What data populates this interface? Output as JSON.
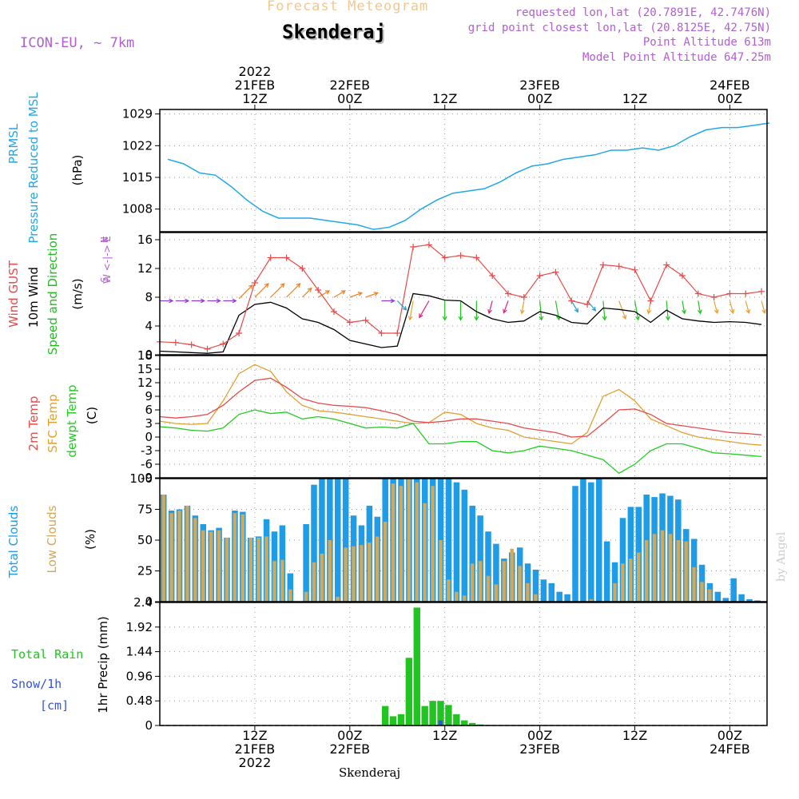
{
  "header": {
    "title_faded": "Forecast Meteogram",
    "location": "Skenderaj",
    "model": "ICON-EU, ~ 7km",
    "meta_lines": [
      "requested lon,lat (20.7891E, 42.7476N)",
      "grid point closest lon,lat (20.8125E, 42.75N)",
      "Point Altitude 613m",
      "Model Point Altitude 647.25m"
    ],
    "footer_location": "Skenderaj",
    "watermark": "by Angel"
  },
  "colors": {
    "pressure": "#22a7e8",
    "gust": "#e84a4a",
    "wind": "#000000",
    "direction": "#22bb22",
    "temp2m": "#e84a4a",
    "sfc": "#e0a030",
    "dewpt": "#22cc22",
    "total_clouds": "#1e9ce8",
    "low_clouds": "#d2a85a",
    "rain": "#22c422",
    "snow": "#3355dd",
    "label_purple": "#b060d0"
  },
  "time_axis": {
    "top_labels": [
      {
        "h": 12,
        "lines": [
          "2022",
          "21FEB",
          "12Z"
        ]
      },
      {
        "h": 24,
        "lines": [
          "22FEB",
          "00Z"
        ]
      },
      {
        "h": 36,
        "lines": [
          "12Z"
        ]
      },
      {
        "h": 48,
        "lines": [
          "23FEB",
          "00Z"
        ]
      },
      {
        "h": 60,
        "lines": [
          "12Z"
        ]
      },
      {
        "h": 72,
        "lines": [
          "24FEB",
          "00Z"
        ]
      }
    ],
    "bottom_labels": [
      {
        "h": 12,
        "lines": [
          "12Z",
          "21FEB",
          "2022"
        ]
      },
      {
        "h": 24,
        "lines": [
          "00Z",
          "22FEB"
        ]
      },
      {
        "h": 36,
        "lines": [
          "12Z"
        ]
      },
      {
        "h": 48,
        "lines": [
          "00Z",
          "23FEB"
        ]
      },
      {
        "h": 60,
        "lines": [
          "12Z"
        ]
      },
      {
        "h": 72,
        "lines": [
          "00Z",
          "24FEB"
        ]
      }
    ]
  },
  "panels": {
    "pressure": {
      "labels": [
        "PRMSL",
        "Pressure Reduced to MSL"
      ],
      "unit": "(hPa)",
      "yticks": [
        "1008",
        "1015",
        "1022",
        "1029"
      ]
    },
    "wind": {
      "labels": [
        "Wind GUST",
        "10m Wind",
        "Speed and Direction"
      ],
      "unit": "(m/s)",
      "compass": [
        "N",
        "W <-|-> E",
        "S"
      ],
      "yticks": [
        "0",
        "4",
        "8",
        "12",
        "16"
      ]
    },
    "temp": {
      "labels": [
        "2m Temp",
        "SFC Temp",
        "dewpt Temp"
      ],
      "unit": "(C)",
      "yticks": [
        "-9",
        "-6",
        "-3",
        "0",
        "3",
        "6",
        "9",
        "12",
        "15",
        "18"
      ]
    },
    "clouds": {
      "labels": [
        "Total Clouds",
        "Low Clouds"
      ],
      "unit": "(%)",
      "yticks": [
        "0",
        "25",
        "50",
        "75",
        "100"
      ]
    },
    "precip": {
      "labels": [
        "Total  Rain",
        "Snow/1h",
        "[cm]"
      ],
      "unit": "1hr Precip (mm)",
      "yticks": [
        "0",
        "0.48",
        "0.96",
        "1.44",
        "1.92",
        "2.4"
      ]
    }
  },
  "chart_data": [
    {
      "type": "line",
      "name": "pressure",
      "ylim": [
        1003,
        1030
      ],
      "x": [
        1,
        3,
        5,
        7,
        9,
        11,
        13,
        15,
        17,
        19,
        21,
        23,
        25,
        27,
        29,
        31,
        33,
        35,
        37,
        39,
        41,
        43,
        45,
        47,
        49,
        51,
        53,
        55,
        57,
        59,
        61,
        63,
        65,
        67,
        69,
        71,
        73,
        75,
        77
      ],
      "values": [
        1019,
        1018,
        1016,
        1015.5,
        1013,
        1010,
        1007.5,
        1006,
        1006,
        1006,
        1005.5,
        1005,
        1004.5,
        1003.5,
        1004,
        1005.5,
        1008,
        1010,
        1011.5,
        1012,
        1012.5,
        1014,
        1016,
        1017.5,
        1018,
        1019,
        1019.5,
        1020,
        1021,
        1021,
        1021.5,
        1021,
        1022,
        1024,
        1025.5,
        1026,
        1026,
        1026.5,
        1027
      ]
    },
    {
      "type": "line",
      "name": "wind",
      "ylim": [
        0,
        17
      ],
      "x": [
        0,
        2,
        4,
        6,
        8,
        10,
        12,
        14,
        16,
        18,
        20,
        22,
        24,
        26,
        28,
        30,
        32,
        34,
        36,
        38,
        40,
        42,
        44,
        46,
        48,
        50,
        52,
        54,
        56,
        58,
        60,
        62,
        64,
        66,
        68,
        70,
        72,
        74,
        76
      ],
      "gust": [
        1.8,
        1.7,
        1.4,
        0.8,
        1.5,
        3,
        10,
        13.5,
        13.5,
        12,
        9,
        6,
        4.5,
        4.8,
        3,
        3,
        15,
        15.3,
        13.5,
        13.8,
        13.5,
        11,
        8.5,
        8,
        11,
        11.5,
        7.5,
        7,
        12.5,
        12.3,
        11.8,
        7.5,
        12.5,
        11,
        8.5,
        8,
        8.5,
        8.5,
        8.8
      ],
      "wind10m": [
        0.5,
        0.4,
        0.3,
        0.2,
        0.4,
        5.5,
        7,
        7.3,
        6.5,
        5,
        4.5,
        3.5,
        2,
        1.5,
        1,
        1.2,
        8.5,
        8.2,
        7.6,
        7.5,
        6,
        5,
        4.5,
        4.7,
        6,
        5.5,
        4.5,
        4.3,
        6.5,
        6.3,
        6,
        4.5,
        6.2,
        5,
        4.7,
        4.5,
        4.6,
        4.5,
        4.2
      ],
      "direction_deg": [
        270,
        270,
        270,
        270,
        270,
        225,
        225,
        225,
        225,
        225,
        240,
        240,
        250,
        250,
        270,
        315,
        10,
        30,
        0,
        0,
        0,
        15,
        20,
        10,
        355,
        350,
        330,
        320,
        355,
        340,
        350,
        10,
        355,
        350,
        350,
        345,
        345,
        345,
        345
      ],
      "direction_speed": [
        7.5,
        7.5,
        7.5,
        7.5,
        7.5,
        7.8,
        8,
        8,
        8,
        8,
        8,
        8,
        8,
        8,
        7.5,
        7.5,
        7.5,
        7.5,
        7.5,
        7.5,
        7.5,
        7.5,
        7.5,
        7.5,
        7.5,
        7.5,
        7.5,
        7.5,
        7.5,
        7.5,
        7.5,
        7.5,
        7.5,
        7.5,
        7.5,
        7.5,
        7.5,
        7.5,
        7.5
      ]
    },
    {
      "type": "line",
      "name": "temperature",
      "ylim": [
        -9,
        18
      ],
      "x": [
        0,
        2,
        4,
        6,
        8,
        10,
        12,
        14,
        16,
        18,
        20,
        22,
        24,
        26,
        28,
        30,
        32,
        34,
        36,
        38,
        40,
        42,
        44,
        46,
        48,
        50,
        52,
        54,
        56,
        58,
        60,
        62,
        64,
        66,
        68,
        70,
        72,
        74,
        76
      ],
      "temp2m": [
        4.5,
        4.2,
        4.5,
        5,
        7,
        10,
        12.5,
        13,
        11,
        8.5,
        7.5,
        7,
        6.8,
        6.5,
        5.8,
        5,
        3.5,
        3.2,
        3.5,
        4,
        4,
        3.5,
        3,
        2,
        1.5,
        1,
        0,
        0.2,
        3,
        6,
        6.2,
        5,
        3,
        2.5,
        2,
        1.5,
        1,
        0.8,
        0.5
      ],
      "sfc": [
        3.5,
        3,
        2.8,
        3,
        8,
        14,
        16,
        14.5,
        10,
        7,
        5.8,
        5.5,
        5,
        4.5,
        4,
        3.5,
        3,
        3.2,
        5.5,
        5,
        3,
        2,
        1.5,
        0,
        -0.5,
        -1,
        -1.5,
        1,
        9,
        10.5,
        8,
        4,
        2.5,
        1,
        0,
        -0.5,
        -1,
        -1.5,
        -1.8
      ],
      "dewpt": [
        2.3,
        2,
        1.5,
        1.3,
        2,
        5,
        6,
        5.2,
        5.5,
        4,
        4.5,
        4,
        3,
        2,
        2.2,
        2,
        3,
        -1.5,
        -1.5,
        -1,
        -1,
        -3,
        -3.5,
        -3,
        -2,
        -2.5,
        -3,
        -4,
        -5,
        -8,
        -6,
        -3,
        -1.5,
        -1.5,
        -2.5,
        -3.5,
        -3.7,
        -4,
        -4.3
      ]
    },
    {
      "type": "bar",
      "name": "clouds",
      "ylim": [
        0,
        100
      ],
      "x": [
        0,
        1,
        2,
        3,
        4,
        5,
        6,
        7,
        8,
        9,
        10,
        11,
        12,
        13,
        14,
        15,
        16,
        17,
        18,
        19,
        20,
        21,
        22,
        23,
        24,
        25,
        26,
        27,
        28,
        29,
        30,
        31,
        32,
        33,
        34,
        35,
        36,
        37,
        38,
        39,
        40,
        41,
        42,
        43,
        44,
        45,
        46,
        47,
        48,
        49,
        50,
        51,
        52,
        53,
        54,
        55,
        56,
        57,
        58,
        59,
        60,
        61,
        62,
        63,
        64,
        65,
        66,
        67,
        68,
        69,
        70,
        71,
        72,
        73,
        74,
        75,
        76
      ],
      "total": [
        87,
        74,
        75,
        78,
        70,
        63,
        58,
        60,
        52,
        74,
        73,
        52,
        53,
        67,
        57,
        62,
        23,
        0,
        63,
        95,
        100,
        100,
        100,
        100,
        70,
        62,
        78,
        69,
        100,
        100,
        100,
        100,
        100,
        100,
        100,
        100,
        100,
        97,
        91,
        78,
        70,
        57,
        47,
        35,
        40,
        44,
        31,
        26,
        18,
        15,
        8,
        6,
        94,
        100,
        97,
        100,
        49,
        32,
        68,
        77,
        77,
        87,
        85,
        88,
        86,
        83,
        59,
        51,
        30,
        15,
        8,
        3,
        19,
        6,
        2,
        1,
        0
      ],
      "low": [
        87,
        72,
        74,
        78,
        68,
        58,
        57,
        58,
        52,
        72,
        71,
        52,
        52,
        53,
        33,
        34,
        10,
        0,
        8,
        32,
        39,
        50,
        4,
        44,
        45,
        46,
        48,
        53,
        65,
        96,
        94,
        100,
        97,
        80,
        94,
        50,
        18,
        8,
        5,
        31,
        33,
        21,
        14,
        33,
        43,
        29,
        15,
        6,
        0,
        0,
        0,
        0,
        0,
        0,
        2,
        0,
        0,
        15,
        31,
        35,
        40,
        50,
        55,
        58,
        55,
        50,
        49,
        28,
        16,
        10,
        0,
        0,
        0,
        0,
        0,
        0,
        0
      ]
    },
    {
      "type": "bar",
      "name": "precip",
      "ylim": [
        0,
        2.4
      ],
      "x": [
        28,
        29,
        30,
        31,
        32,
        33,
        34,
        35,
        36,
        37,
        38,
        39,
        40,
        41
      ],
      "rain": [
        0.38,
        0.18,
        0.22,
        1.32,
        2.3,
        0.38,
        0.48,
        0.48,
        0.4,
        0.22,
        0.1,
        0.05,
        0.02,
        0.01
      ],
      "snow": [
        0,
        0,
        0,
        0,
        0,
        0,
        0,
        0.1,
        0.02,
        0,
        0,
        0,
        0,
        0
      ]
    }
  ]
}
